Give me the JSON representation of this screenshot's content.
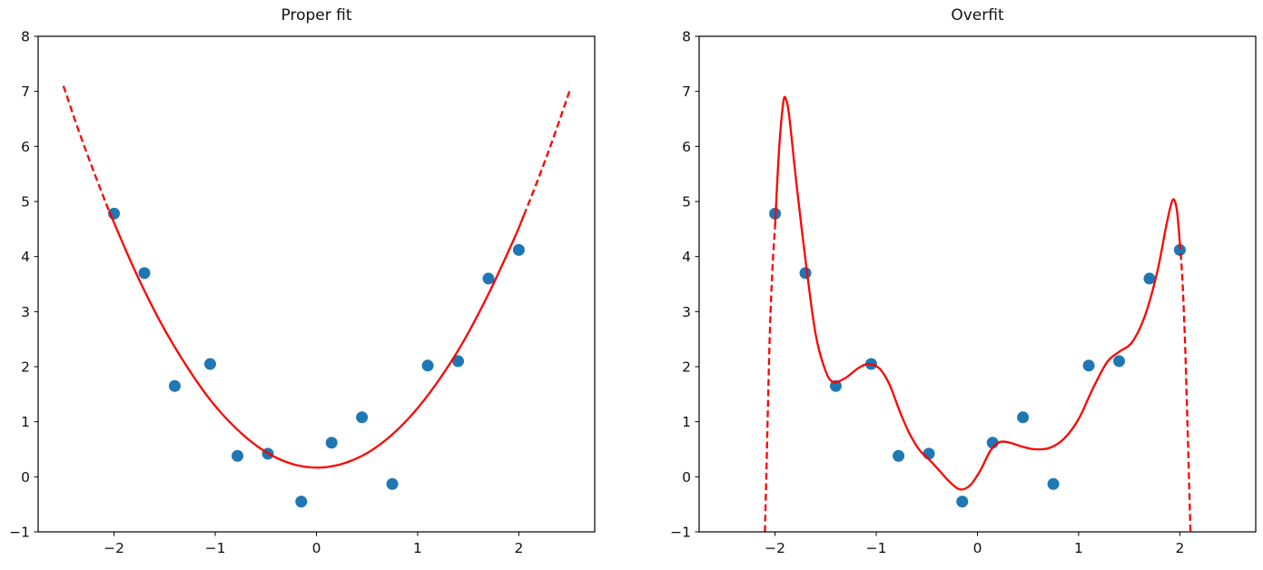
{
  "figure": {
    "background": "#ffffff",
    "text_color": "#111111",
    "spine_color": "#000000"
  },
  "chart_data": [
    {
      "type": "scatter",
      "title": "Proper fit",
      "xlim": [
        -2.75,
        2.75
      ],
      "ylim": [
        -1,
        8
      ],
      "grid": false,
      "legend": "none",
      "xticks": [
        {
          "v": -2,
          "label": "−2"
        },
        {
          "v": -1,
          "label": "−1"
        },
        {
          "v": 0,
          "label": "0"
        },
        {
          "v": 1,
          "label": "1"
        },
        {
          "v": 2,
          "label": "2"
        }
      ],
      "yticks": [
        {
          "v": -1,
          "label": "−1"
        },
        {
          "v": 0,
          "label": "0"
        },
        {
          "v": 1,
          "label": "1"
        },
        {
          "v": 2,
          "label": "2"
        },
        {
          "v": 3,
          "label": "3"
        },
        {
          "v": 4,
          "label": "4"
        },
        {
          "v": 5,
          "label": "5"
        },
        {
          "v": 6,
          "label": "6"
        },
        {
          "v": 7,
          "label": "7"
        },
        {
          "v": 8,
          "label": "8"
        }
      ],
      "scatter_color": "#1f77b4",
      "line_color": "#ff0000",
      "scatter_points": [
        [
          -2.0,
          4.78
        ],
        [
          -1.7,
          3.7
        ],
        [
          -1.4,
          1.65
        ],
        [
          -1.05,
          2.05
        ],
        [
          -0.78,
          0.38
        ],
        [
          -0.48,
          0.42
        ],
        [
          -0.15,
          -0.45
        ],
        [
          0.15,
          0.62
        ],
        [
          0.45,
          1.08
        ],
        [
          0.75,
          -0.13
        ],
        [
          1.1,
          2.02
        ],
        [
          1.4,
          2.1
        ],
        [
          1.7,
          3.6
        ],
        [
          2.0,
          4.12
        ]
      ],
      "lines": [
        {
          "name": "extrapolation-left",
          "style": "dashed",
          "points": [
            [
              -2.5,
              7.1
            ],
            [
              -2.35,
              6.29
            ],
            [
              -2.2,
              5.54
            ],
            [
              -2.05,
              4.83
            ]
          ]
        },
        {
          "name": "fit-curve",
          "style": "solid",
          "points": [
            [
              -2.05,
              4.83
            ],
            [
              -1.8,
              3.77
            ],
            [
              -1.55,
              2.84
            ],
            [
              -1.3,
              2.06
            ],
            [
              -1.05,
              1.4
            ],
            [
              -0.8,
              0.89
            ],
            [
              -0.55,
              0.51
            ],
            [
              -0.3,
              0.27
            ],
            [
              -0.05,
              0.17
            ],
            [
              0.2,
              0.21
            ],
            [
              0.45,
              0.38
            ],
            [
              0.7,
              0.69
            ],
            [
              0.95,
              1.14
            ],
            [
              1.2,
              1.73
            ],
            [
              1.45,
              2.45
            ],
            [
              1.7,
              3.32
            ],
            [
              1.95,
              4.31
            ],
            [
              2.05,
              4.75
            ]
          ]
        },
        {
          "name": "extrapolation-right",
          "style": "dashed",
          "points": [
            [
              2.05,
              4.75
            ],
            [
              2.2,
              5.45
            ],
            [
              2.35,
              6.2
            ],
            [
              2.5,
              7.0
            ]
          ]
        }
      ]
    },
    {
      "type": "scatter",
      "title": "Overfit",
      "xlim": [
        -2.75,
        2.75
      ],
      "ylim": [
        -1,
        8
      ],
      "grid": false,
      "legend": "none",
      "xticks": [
        {
          "v": -2,
          "label": "−2"
        },
        {
          "v": -1,
          "label": "−1"
        },
        {
          "v": 0,
          "label": "0"
        },
        {
          "v": 1,
          "label": "1"
        },
        {
          "v": 2,
          "label": "2"
        }
      ],
      "yticks": [
        {
          "v": -1,
          "label": "−1"
        },
        {
          "v": 0,
          "label": "0"
        },
        {
          "v": 1,
          "label": "1"
        },
        {
          "v": 2,
          "label": "2"
        },
        {
          "v": 3,
          "label": "3"
        },
        {
          "v": 4,
          "label": "4"
        },
        {
          "v": 5,
          "label": "5"
        },
        {
          "v": 6,
          "label": "6"
        },
        {
          "v": 7,
          "label": "7"
        },
        {
          "v": 8,
          "label": "8"
        }
      ],
      "scatter_color": "#1f77b4",
      "line_color": "#ff0000",
      "scatter_points": [
        [
          -2.0,
          4.78
        ],
        [
          -1.7,
          3.7
        ],
        [
          -1.4,
          1.65
        ],
        [
          -1.05,
          2.05
        ],
        [
          -0.78,
          0.38
        ],
        [
          -0.48,
          0.42
        ],
        [
          -0.15,
          -0.45
        ],
        [
          0.15,
          0.62
        ],
        [
          0.45,
          1.08
        ],
        [
          0.75,
          -0.13
        ],
        [
          1.1,
          2.02
        ],
        [
          1.4,
          2.1
        ],
        [
          1.7,
          3.6
        ],
        [
          2.0,
          4.12
        ]
      ],
      "lines": [
        {
          "name": "extrapolation-left",
          "style": "dashed",
          "points": [
            [
              -2.1,
              -1.0
            ],
            [
              -2.085,
              0.1
            ],
            [
              -2.07,
              1.3
            ],
            [
              -2.05,
              2.7
            ],
            [
              -2.025,
              3.8
            ],
            [
              -2.0,
              4.55
            ]
          ]
        },
        {
          "name": "fit-curve",
          "style": "solid",
          "points": [
            [
              -2.0,
              4.55
            ],
            [
              -1.96,
              5.95
            ],
            [
              -1.92,
              6.78
            ],
            [
              -1.895,
              6.87
            ],
            [
              -1.86,
              6.55
            ],
            [
              -1.79,
              5.35
            ],
            [
              -1.7,
              3.95
            ],
            [
              -1.6,
              2.6
            ],
            [
              -1.5,
              1.92
            ],
            [
              -1.42,
              1.72
            ],
            [
              -1.3,
              1.8
            ],
            [
              -1.18,
              1.97
            ],
            [
              -1.08,
              2.05
            ],
            [
              -0.97,
              1.97
            ],
            [
              -0.87,
              1.68
            ],
            [
              -0.77,
              1.2
            ],
            [
              -0.67,
              0.78
            ],
            [
              -0.57,
              0.48
            ],
            [
              -0.47,
              0.3
            ],
            [
              -0.37,
              0.1
            ],
            [
              -0.27,
              -0.1
            ],
            [
              -0.17,
              -0.23
            ],
            [
              -0.07,
              -0.15
            ],
            [
              0.03,
              0.12
            ],
            [
              0.13,
              0.48
            ],
            [
              0.22,
              0.63
            ],
            [
              0.32,
              0.62
            ],
            [
              0.44,
              0.55
            ],
            [
              0.57,
              0.5
            ],
            [
              0.72,
              0.53
            ],
            [
              0.86,
              0.7
            ],
            [
              1.0,
              1.05
            ],
            [
              1.14,
              1.6
            ],
            [
              1.28,
              2.08
            ],
            [
              1.4,
              2.27
            ],
            [
              1.53,
              2.45
            ],
            [
              1.66,
              2.95
            ],
            [
              1.78,
              3.75
            ],
            [
              1.87,
              4.6
            ],
            [
              1.93,
              5.03
            ],
            [
              1.97,
              4.85
            ],
            [
              2.0,
              4.25
            ]
          ]
        },
        {
          "name": "extrapolation-right",
          "style": "dashed",
          "points": [
            [
              2.0,
              4.25
            ],
            [
              2.025,
              3.6
            ],
            [
              2.05,
              2.5
            ],
            [
              2.07,
              1.3
            ],
            [
              2.09,
              0.0
            ],
            [
              2.105,
              -1.0
            ]
          ]
        }
      ]
    }
  ]
}
